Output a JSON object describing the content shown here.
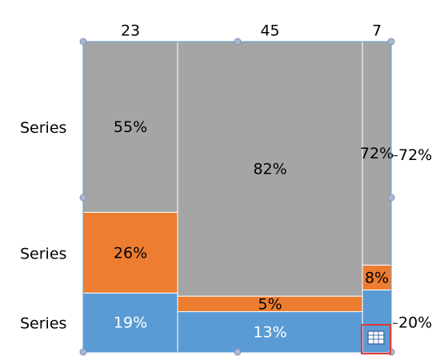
{
  "chart_data": {
    "type": "mekko",
    "widths": [
      23,
      45,
      7
    ],
    "ylim": [
      0,
      100
    ],
    "series": [
      {
        "name": "Series",
        "color": "#5b9bd5",
        "label_color": "#ffffff",
        "right_label": true,
        "values": [
          19,
          13,
          20
        ],
        "value_labels": [
          "19%",
          "13%",
          null
        ]
      },
      {
        "name": "Series",
        "color": "#ed7d31",
        "label_color": "#000000",
        "right_label": false,
        "values": [
          26,
          5,
          8
        ],
        "value_labels": [
          "26%",
          "5%",
          "8%"
        ]
      },
      {
        "name": "Series",
        "color": "#a5a5a5",
        "label_color": "#000000",
        "right_label": true,
        "values": [
          55,
          82,
          72
        ],
        "value_labels": [
          "55%",
          "82%",
          "72%"
        ]
      }
    ],
    "right_value_labels": [
      "20%",
      "72%"
    ]
  }
}
